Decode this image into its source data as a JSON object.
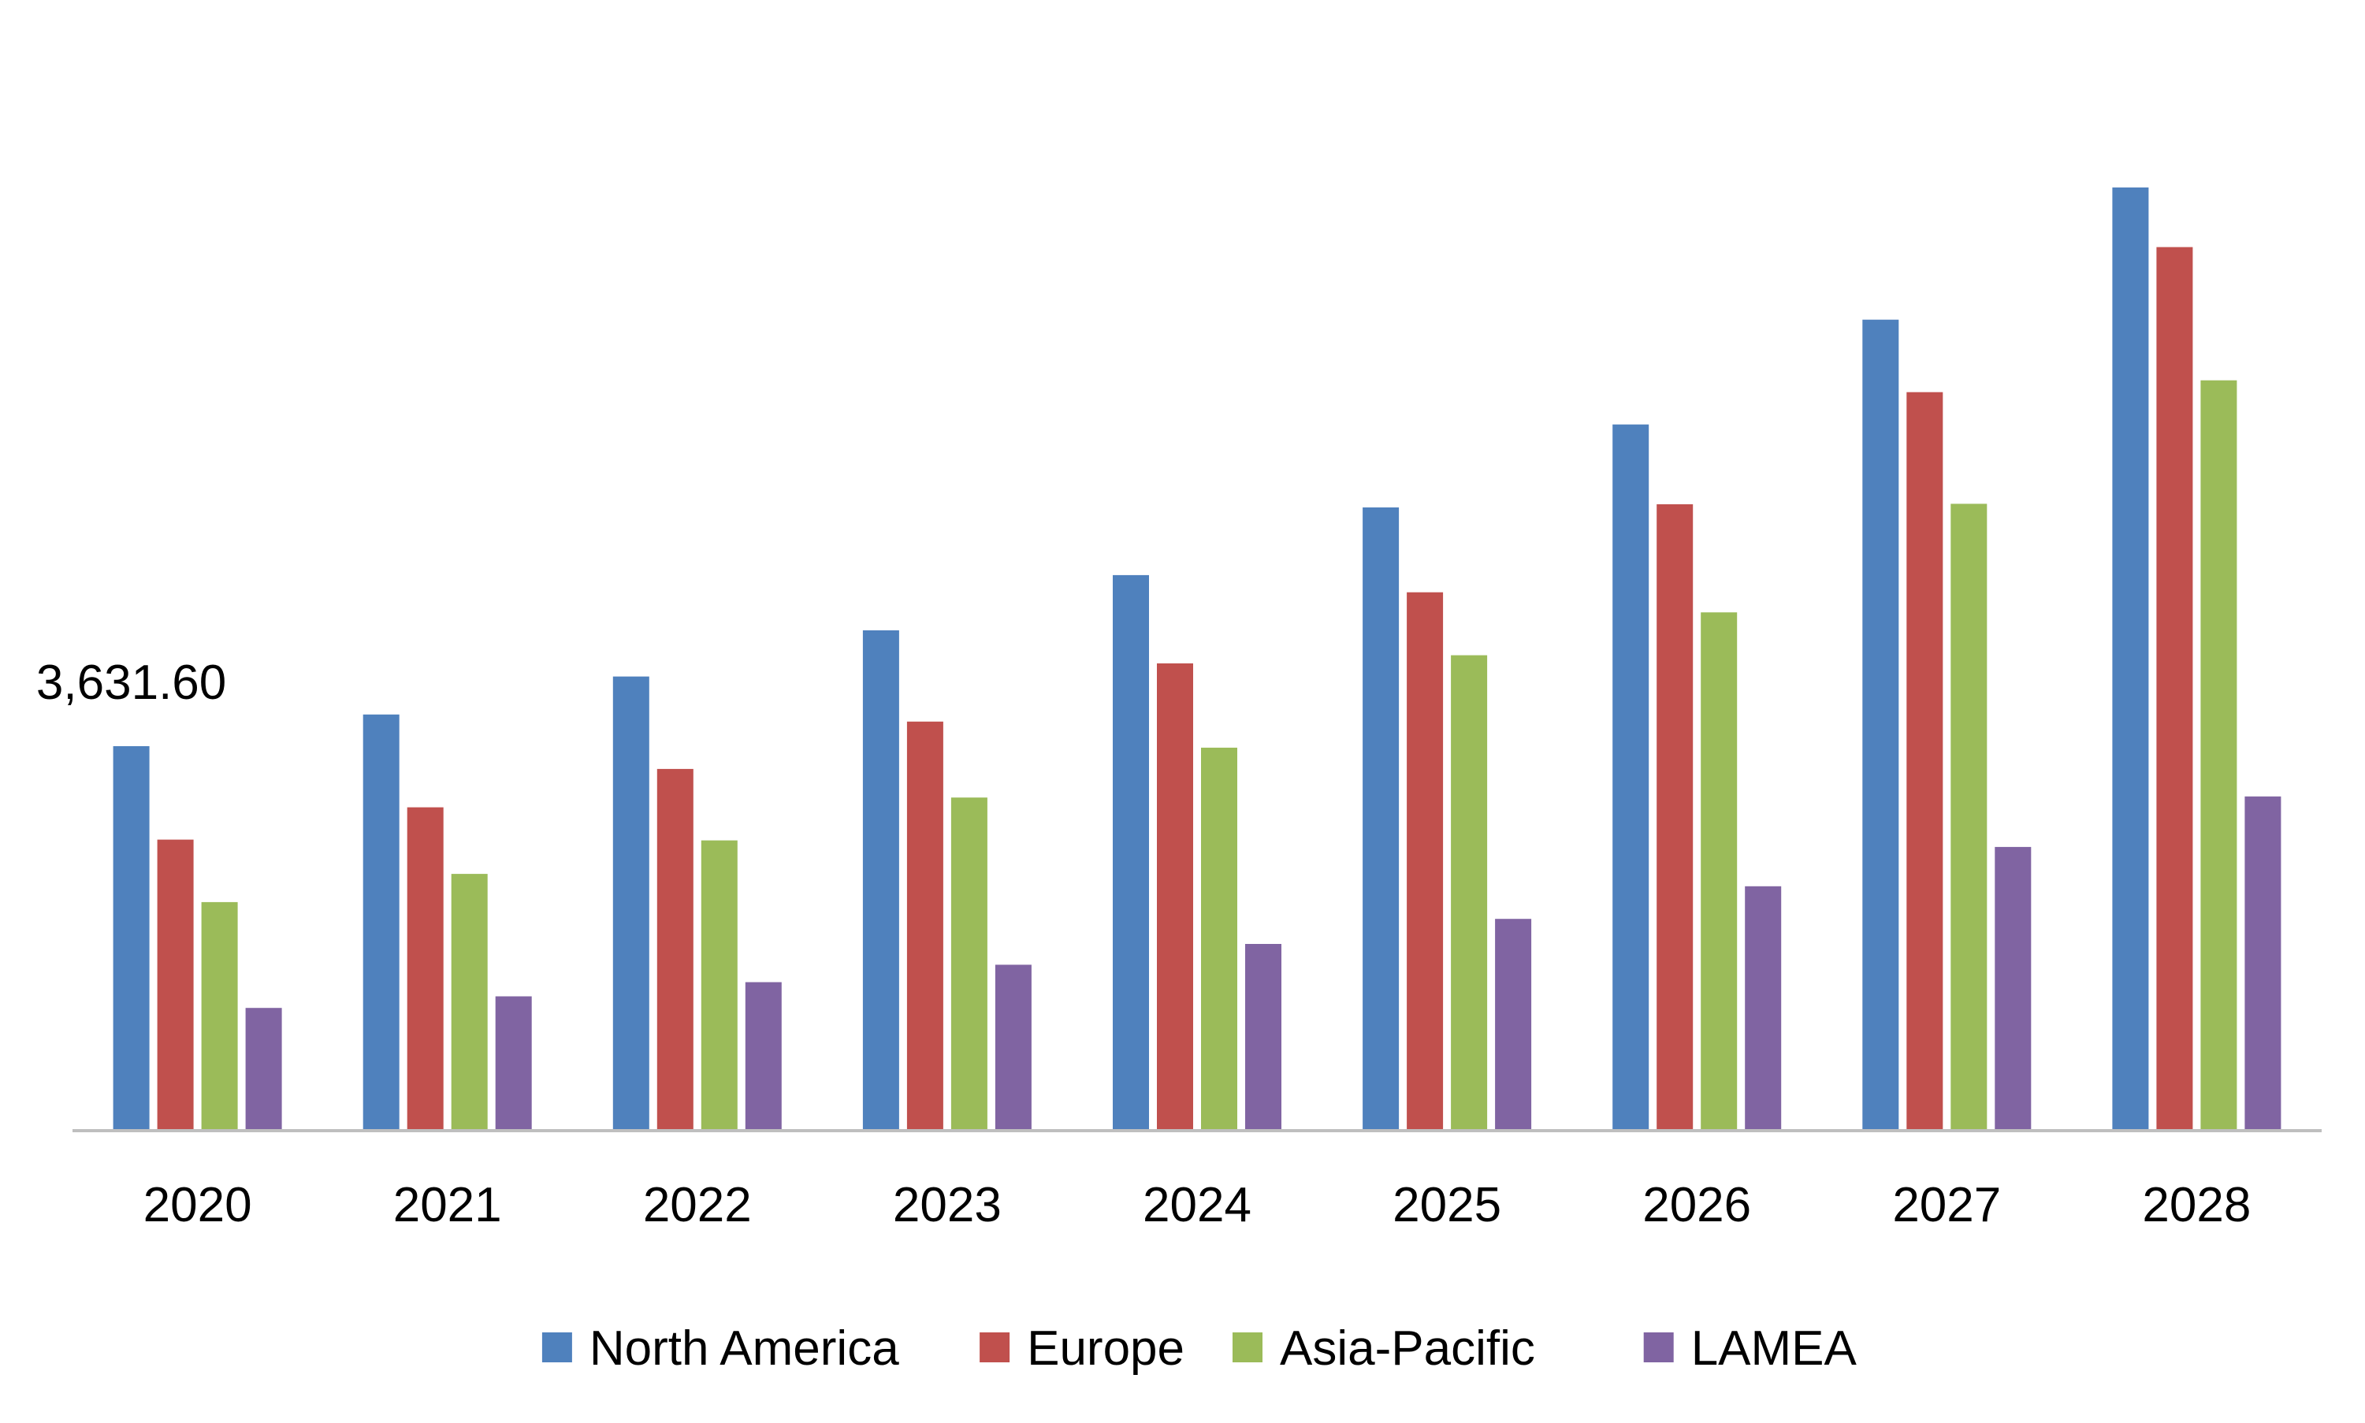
{
  "chart_data": {
    "type": "bar",
    "categories": [
      "2020",
      "2021",
      "2022",
      "2023",
      "2024",
      "2025",
      "2026",
      "2027",
      "2028"
    ],
    "series": [
      {
        "name": "North America",
        "color": "#4F81BD",
        "values": [
          3631.6,
          3931,
          4291,
          4728,
          5250,
          5891,
          6676,
          7668,
          8919
        ]
      },
      {
        "name": "Europe",
        "color": "#C0504D",
        "values": [
          2747,
          3053,
          3416,
          3864,
          4415,
          5088,
          5921,
          6982,
          8355
        ]
      },
      {
        "name": "Asia-Pacific",
        "color": "#9BBB59",
        "values": [
          2156,
          2423,
          2740,
          3145,
          3617,
          4492,
          4898,
          5925,
          7094
        ]
      },
      {
        "name": "LAMEA",
        "color": "#8064A2",
        "values": [
          1154,
          1264,
          1398,
          1563,
          1760,
          1997,
          2306,
          2678,
          3156
        ]
      }
    ],
    "data_labels": [
      {
        "series": "North America",
        "category": "2020",
        "text": "3,631.60"
      }
    ],
    "title": "",
    "xlabel": "",
    "ylabel": "",
    "ylim": [
      0,
      9500
    ],
    "grid": false,
    "y_axis_visible": false,
    "legend_position": "bottom"
  }
}
